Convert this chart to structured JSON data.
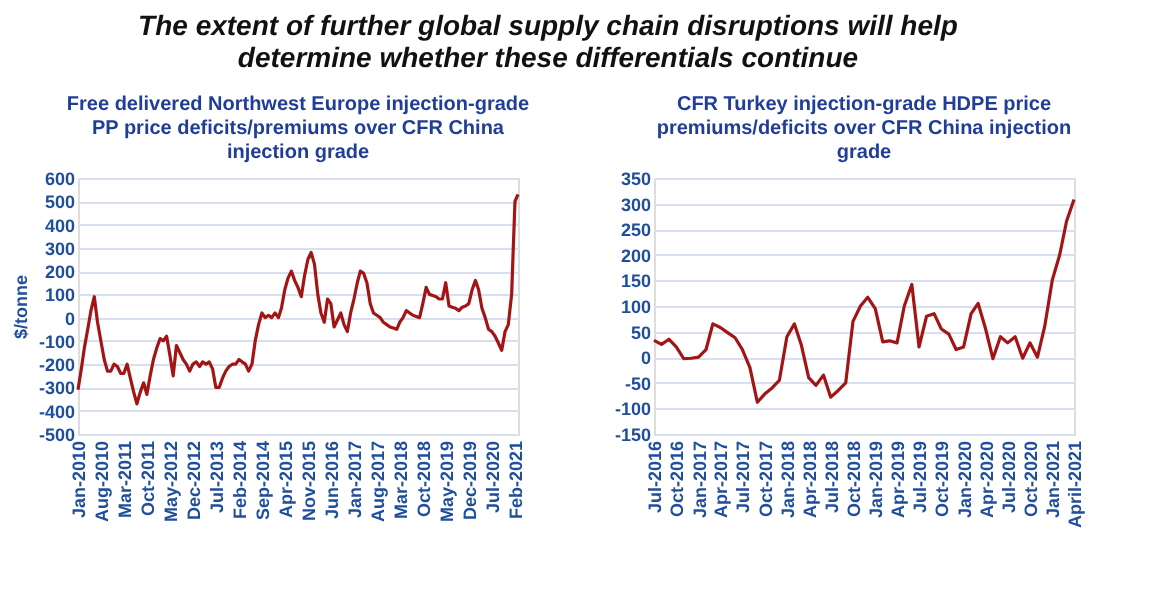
{
  "chart_data": [
    {
      "type": "line",
      "title": "Free delivered Northwest Europe injection-grade\nPP price deficits/premiums over CFR China\ninjection grade",
      "annotations": [
        "The extent of further global supply chain disruptions will help\ndetermine whether these differentials continue"
      ],
      "ylabel": "$/tonne",
      "x": [
        "2010-01",
        "2010-02",
        "2010-03",
        "2010-04",
        "2010-05",
        "2010-06",
        "2010-07",
        "2010-08",
        "2010-09",
        "2010-10",
        "2010-11",
        "2010-12",
        "2011-01",
        "2011-02",
        "2011-03",
        "2011-04",
        "2011-05",
        "2011-06",
        "2011-07",
        "2011-08",
        "2011-09",
        "2011-10",
        "2011-11",
        "2011-12",
        "2012-01",
        "2012-02",
        "2012-03",
        "2012-04",
        "2012-05",
        "2012-06",
        "2012-07",
        "2012-08",
        "2012-09",
        "2012-10",
        "2012-11",
        "2012-12",
        "2013-01",
        "2013-02",
        "2013-03",
        "2013-04",
        "2013-05",
        "2013-06",
        "2013-07",
        "2013-08",
        "2013-09",
        "2013-10",
        "2013-11",
        "2013-12",
        "2014-01",
        "2014-02",
        "2014-03",
        "2014-04",
        "2014-05",
        "2014-06",
        "2014-07",
        "2014-08",
        "2014-09",
        "2014-10",
        "2014-11",
        "2014-12",
        "2015-01",
        "2015-02",
        "2015-03",
        "2015-04",
        "2015-05",
        "2015-06",
        "2015-07",
        "2015-08",
        "2015-09",
        "2015-10",
        "2015-11",
        "2015-12",
        "2016-01",
        "2016-02",
        "2016-03",
        "2016-04",
        "2016-05",
        "2016-06",
        "2016-07",
        "2016-08",
        "2016-09",
        "2016-10",
        "2016-11",
        "2016-12",
        "2017-01",
        "2017-02",
        "2017-03",
        "2017-04",
        "2017-05",
        "2017-06",
        "2017-07",
        "2017-08",
        "2017-09",
        "2017-10",
        "2017-11",
        "2017-12",
        "2018-01",
        "2018-02",
        "2018-03",
        "2018-04",
        "2018-05",
        "2018-06",
        "2018-07",
        "2018-08",
        "2018-09",
        "2018-10",
        "2018-11",
        "2018-12",
        "2019-01",
        "2019-02",
        "2019-03",
        "2019-04",
        "2019-05",
        "2019-06",
        "2019-07",
        "2019-08",
        "2019-09",
        "2019-10",
        "2019-11",
        "2019-12",
        "2020-01",
        "2020-02",
        "2020-03",
        "2020-04",
        "2020-05",
        "2020-06",
        "2020-07",
        "2020-08",
        "2020-09",
        "2020-10",
        "2020-11",
        "2020-12",
        "2021-01",
        "2021-02",
        "2021-03"
      ],
      "series": [
        {
          "color": "#a31515",
          "values": [
            -310,
            -220,
            -130,
            -50,
            30,
            90,
            -20,
            -100,
            -180,
            -230,
            -230,
            -200,
            -210,
            -240,
            -240,
            -200,
            -260,
            -320,
            -370,
            -320,
            -280,
            -330,
            -250,
            -180,
            -130,
            -90,
            -100,
            -80,
            -160,
            -250,
            -120,
            -150,
            -180,
            -200,
            -230,
            -200,
            -190,
            -210,
            -190,
            -200,
            -190,
            -220,
            -300,
            -300,
            -260,
            -230,
            -210,
            -200,
            -200,
            -180,
            -190,
            -200,
            -230,
            -200,
            -100,
            -30,
            20,
            0,
            10,
            0,
            20,
            0,
            40,
            120,
            170,
            200,
            160,
            130,
            90,
            180,
            250,
            280,
            230,
            100,
            20,
            -20,
            80,
            60,
            -40,
            -10,
            20,
            -30,
            -60,
            20,
            80,
            150,
            200,
            190,
            150,
            60,
            20,
            10,
            0,
            -20,
            -30,
            -40,
            -45,
            -50,
            -20,
            0,
            30,
            20,
            10,
            5,
            0,
            60,
            130,
            100,
            95,
            90,
            80,
            80,
            150,
            50,
            45,
            40,
            30,
            45,
            50,
            60,
            120,
            160,
            120,
            40,
            0,
            -50,
            -60,
            -80,
            -110,
            -140,
            -60,
            -30,
            100,
            500,
            530
          ]
        }
      ],
      "xlim": [
        "2010-01",
        "2021-03"
      ],
      "xticks": [
        {
          "value": "2010-01",
          "label": "Jan-2010"
        },
        {
          "value": "2010-08",
          "label": "Aug-2010"
        },
        {
          "value": "2011-03",
          "label": "Mar-2011"
        },
        {
          "value": "2011-10",
          "label": "Oct-2011"
        },
        {
          "value": "2012-05",
          "label": "May-2012"
        },
        {
          "value": "2012-12",
          "label": "Dec-2012"
        },
        {
          "value": "2013-07",
          "label": "Jul-2013"
        },
        {
          "value": "2014-02",
          "label": "Feb-2014"
        },
        {
          "value": "2014-09",
          "label": "Sep-2014"
        },
        {
          "value": "2015-04",
          "label": "Apr-2015"
        },
        {
          "value": "2015-11",
          "label": "Nov-2015"
        },
        {
          "value": "2016-06",
          "label": "Jun-2016"
        },
        {
          "value": "2017-01",
          "label": "Jan-2017"
        },
        {
          "value": "2017-08",
          "label": "Aug-2017"
        },
        {
          "value": "2018-03",
          "label": "Mar-2018"
        },
        {
          "value": "2018-10",
          "label": "Oct-2018"
        },
        {
          "value": "2019-05",
          "label": "May-2019"
        },
        {
          "value": "2019-12",
          "label": "Dec-2019"
        },
        {
          "value": "2020-07",
          "label": "Jul-2020"
        },
        {
          "value": "2021-02",
          "label": "Feb-2021"
        }
      ],
      "ylim": [
        -500,
        600
      ],
      "yticks": [
        -500,
        -400,
        -300,
        -200,
        -100,
        0,
        100,
        200,
        300,
        400,
        500,
        600
      ],
      "grid": "y",
      "legend": false,
      "marker": "none",
      "line_style": "solid"
    },
    {
      "type": "line",
      "title": "CFR Turkey injection-grade HDPE price\npremiums/deficits over CFR China injection\ngrade",
      "x": [
        "2016-07",
        "2016-08",
        "2016-09",
        "2016-10",
        "2016-11",
        "2016-12",
        "2017-01",
        "2017-02",
        "2017-03",
        "2017-04",
        "2017-05",
        "2017-06",
        "2017-07",
        "2017-08",
        "2017-09",
        "2017-10",
        "2017-11",
        "2017-12",
        "2018-01",
        "2018-02",
        "2018-03",
        "2018-04",
        "2018-05",
        "2018-06",
        "2018-07",
        "2018-08",
        "2018-09",
        "2018-10",
        "2018-11",
        "2018-12",
        "2019-01",
        "2019-02",
        "2019-03",
        "2019-04",
        "2019-05",
        "2019-06",
        "2019-07",
        "2019-08",
        "2019-09",
        "2019-10",
        "2019-11",
        "2019-12",
        "2020-01",
        "2020-02",
        "2020-03",
        "2020-04",
        "2020-05",
        "2020-06",
        "2020-07",
        "2020-08",
        "2020-09",
        "2020-10",
        "2020-11",
        "2020-12",
        "2021-01",
        "2021-02",
        "2021-03",
        "2021-04"
      ],
      "series": [
        {
          "color": "#a31515",
          "values": [
            33,
            25,
            35,
            20,
            -3,
            -2,
            0,
            15,
            65,
            58,
            48,
            38,
            15,
            -20,
            -88,
            -72,
            -60,
            -45,
            40,
            65,
            25,
            -40,
            -55,
            -35,
            -78,
            -65,
            -50,
            70,
            100,
            117,
            95,
            30,
            32,
            28,
            100,
            142,
            20,
            80,
            85,
            55,
            45,
            15,
            20,
            85,
            105,
            55,
            -3,
            40,
            28,
            40,
            -2,
            28,
            0,
            60,
            150,
            200,
            265,
            308
          ]
        }
      ],
      "xlim": [
        "2016-07",
        "2021-04"
      ],
      "xticks": [
        {
          "value": "2016-07",
          "label": "Jul-2016"
        },
        {
          "value": "2016-10",
          "label": "Oct-2016"
        },
        {
          "value": "2017-01",
          "label": "Jan-2017"
        },
        {
          "value": "2017-04",
          "label": "Apr-2017"
        },
        {
          "value": "2017-07",
          "label": "Jul-2017"
        },
        {
          "value": "2017-10",
          "label": "Oct-2017"
        },
        {
          "value": "2018-01",
          "label": "Jan-2018"
        },
        {
          "value": "2018-04",
          "label": "Apr-2018"
        },
        {
          "value": "2018-07",
          "label": "Jul-2018"
        },
        {
          "value": "2018-10",
          "label": "Oct-2018"
        },
        {
          "value": "2019-01",
          "label": "Jan-2019"
        },
        {
          "value": "2019-04",
          "label": "Apr-2019"
        },
        {
          "value": "2019-07",
          "label": "Jul-2019"
        },
        {
          "value": "2019-10",
          "label": "Oct-2019"
        },
        {
          "value": "2020-01",
          "label": "Jan-2020"
        },
        {
          "value": "2020-04",
          "label": "Apr-2020"
        },
        {
          "value": "2020-07",
          "label": "Jul-2020"
        },
        {
          "value": "2020-10",
          "label": "Oct-2020"
        },
        {
          "value": "2021-01",
          "label": "Jan-2021"
        },
        {
          "value": "2021-04",
          "label": "April-2021"
        }
      ],
      "ylim": [
        -150,
        350
      ],
      "yticks": [
        -150,
        -100,
        -50,
        0,
        50,
        100,
        150,
        200,
        250,
        300,
        350
      ],
      "grid": "y",
      "legend": false,
      "marker": "none",
      "line_style": "solid"
    }
  ]
}
